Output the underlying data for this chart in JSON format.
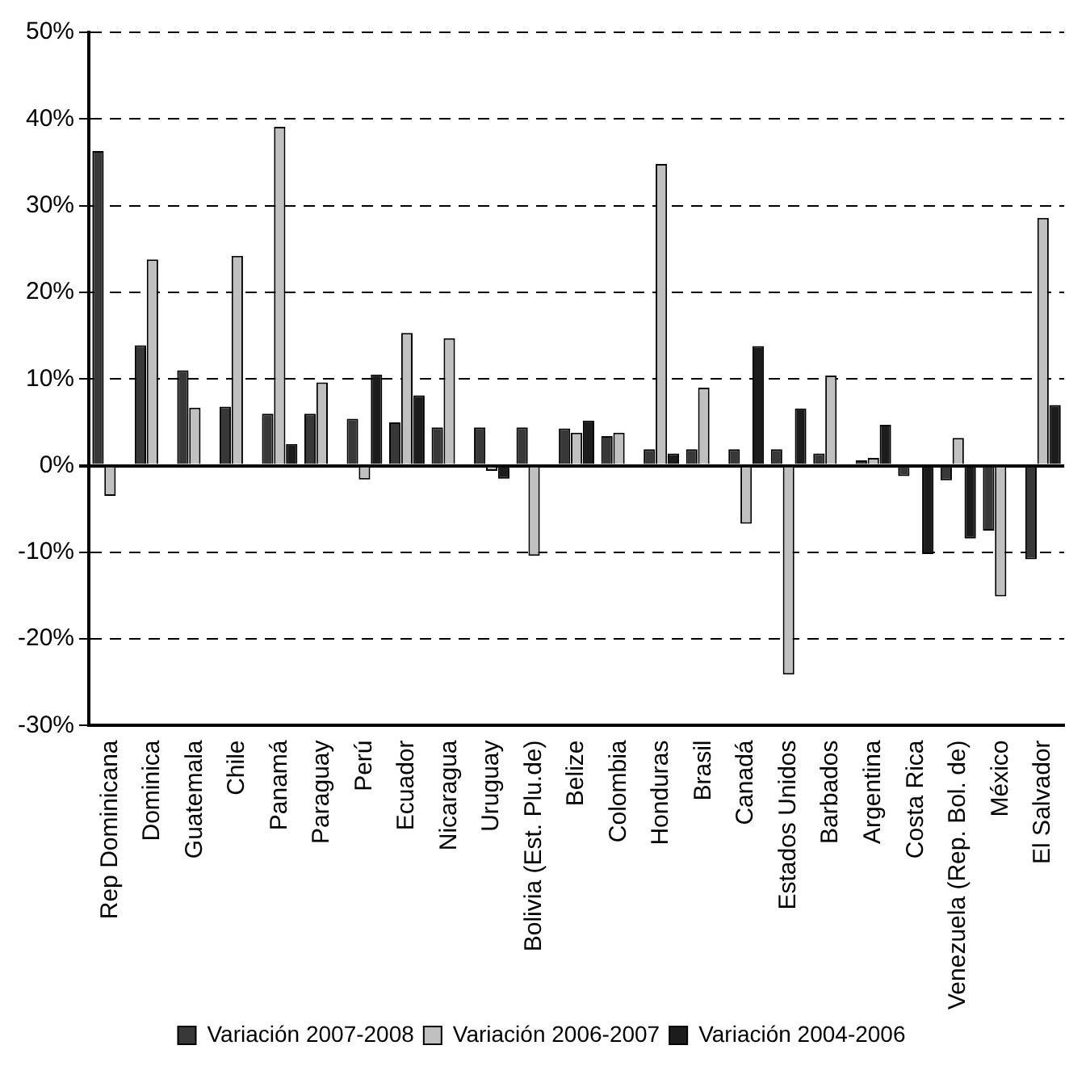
{
  "chart_data": {
    "type": "bar",
    "categories": [
      "Rep Dominicana",
      "Dominica",
      "Guatemala",
      "Chile",
      "Panamá",
      "Paraguay",
      "Perú",
      "Ecuador",
      "Nicaragua",
      "Uruguay",
      "Bolivia (Est. Plu.de)",
      "Belize",
      "Colombia",
      "Honduras",
      "Brasil",
      "Canadá",
      "Estados Unidos",
      "Barbados",
      "Argentina",
      "Costa Rica",
      "Venezuela (Rep. Bol. de)",
      "México",
      "El Salvador"
    ],
    "series": [
      {
        "name": "Variación 2007-2008",
        "color": "#383838",
        "values": [
          36.3,
          13.9,
          11.0,
          6.8,
          6.0,
          6.0,
          5.4,
          5.0,
          4.4,
          4.4,
          4.4,
          4.3,
          3.4,
          1.9,
          1.9,
          1.9,
          1.9,
          1.4,
          0.6,
          -1.2,
          -1.7,
          -7.5,
          -10.8
        ]
      },
      {
        "name": "Variación 2006-2007",
        "color": "#c0c0c0",
        "values": [
          -3.5,
          23.8,
          6.7,
          24.2,
          39.1,
          9.6,
          -1.6,
          15.3,
          14.7,
          -0.6,
          -10.4,
          3.8,
          3.8,
          34.8,
          9.0,
          -6.7,
          -24.1,
          10.4,
          0.9,
          null,
          3.2,
          -15.1,
          28.6
        ]
      },
      {
        "name": "Variación 2004-2006",
        "color": "#1c1c1c",
        "values": [
          null,
          null,
          null,
          null,
          2.5,
          null,
          10.5,
          8.1,
          null,
          -1.5,
          null,
          5.2,
          null,
          1.4,
          null,
          13.8,
          6.6,
          null,
          4.7,
          -10.2,
          -8.4,
          null,
          7.0
        ]
      }
    ],
    "ylim": [
      -30,
      50
    ],
    "yticks": [
      {
        "value": -30,
        "label": "-30%"
      },
      {
        "value": -20,
        "label": "-20%"
      },
      {
        "value": -10,
        "label": "-10%"
      },
      {
        "value": 0,
        "label": "0%"
      },
      {
        "value": 10,
        "label": "10%"
      },
      {
        "value": 20,
        "label": "20%"
      },
      {
        "value": 30,
        "label": "30%"
      },
      {
        "value": 40,
        "label": "40%"
      },
      {
        "value": 50,
        "label": "50%"
      }
    ],
    "grid": "y",
    "legend": "bottom"
  }
}
